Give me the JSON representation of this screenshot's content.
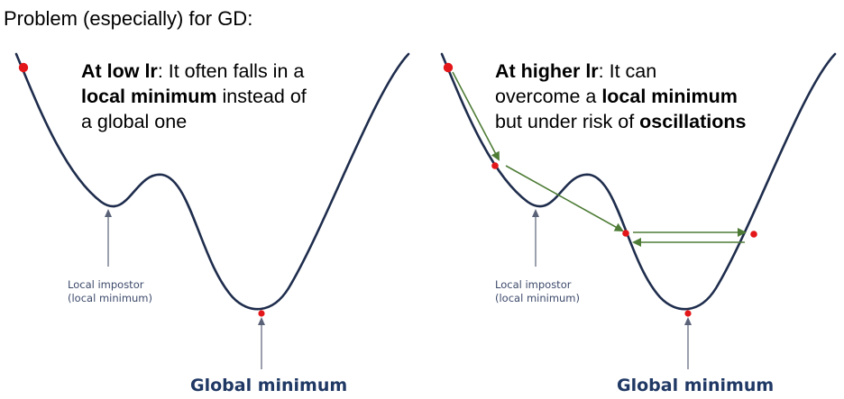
{
  "heading": "Problem (especially) for GD:",
  "left_panel": {
    "caption": {
      "line1_bold": "At low lr",
      "line1_rest": ": It often falls in a",
      "line2_bold": "local minimum",
      "line2_rest": " instead of",
      "line3": "a global one"
    },
    "local_label_line1": "Local impostor",
    "local_label_line2": "(local minimum)",
    "global_label": "Global minimum"
  },
  "right_panel": {
    "caption": {
      "line1_bold": "At higher lr",
      "line1_rest": ": It can",
      "line2_plain": "overcome a ",
      "line2_bold": "local minimum",
      "line3_plain": "but under risk of ",
      "line3_bold": "oscillations"
    },
    "local_label_line1": "Local impostor",
    "local_label_line2": "(local minimum)",
    "global_label": "Global minimum"
  },
  "colors": {
    "curve": "#1f2d4d",
    "point": "#e3171a",
    "step_arrow": "#4e7c36",
    "global_label": "#1f3864",
    "local_label": "#3d4a6b"
  }
}
